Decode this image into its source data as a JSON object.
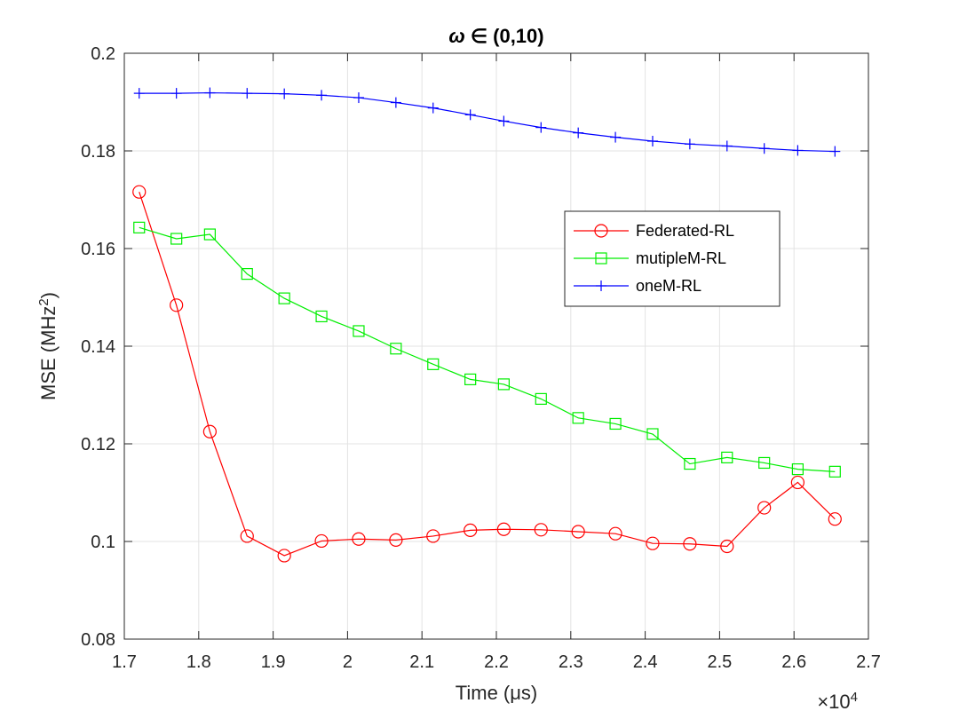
{
  "chart_data": {
    "type": "line",
    "title_symbol": "ω",
    "title_rest": "∈ (0,10)",
    "xlabel": "Time (μs)",
    "ylabel": "MSE (MHz",
    "ylabel_sup": "2",
    "ylabel_end": ")",
    "x_exponent_base": "×10",
    "x_exponent_power": "4",
    "xlim": [
      1.7,
      2.7
    ],
    "ylim": [
      0.08,
      0.2
    ],
    "x_ticks": [
      1.7,
      1.8,
      1.9,
      2.0,
      2.1,
      2.2,
      2.3,
      2.4,
      2.5,
      2.6,
      2.7
    ],
    "x_tick_labels": [
      "1.7",
      "1.8",
      "1.9",
      "2",
      "2.1",
      "2.2",
      "2.3",
      "2.4",
      "2.5",
      "2.6",
      "2.7"
    ],
    "y_ticks": [
      0.08,
      0.1,
      0.12,
      0.14,
      0.16,
      0.18,
      0.2
    ],
    "y_tick_labels": [
      "0.08",
      "0.1",
      "0.12",
      "0.14",
      "0.16",
      "0.18",
      "0.2"
    ],
    "grid": true,
    "legend_position": "upper-right-inside",
    "series": [
      {
        "name": "Federated-RL",
        "color": "#ff0000",
        "marker": "circle",
        "x": [
          1.72,
          1.77,
          1.815,
          1.865,
          1.915,
          1.965,
          2.015,
          2.065,
          2.115,
          2.165,
          2.21,
          2.26,
          2.31,
          2.36,
          2.41,
          2.46,
          2.51,
          2.56,
          2.605,
          2.655
        ],
        "y": [
          0.1716,
          0.1484,
          0.1225,
          0.1011,
          0.0971,
          0.1001,
          0.1005,
          0.1003,
          0.1011,
          0.1023,
          0.1025,
          0.1024,
          0.102,
          0.1016,
          0.0996,
          0.0995,
          0.099,
          0.1069,
          0.1121,
          0.1046
        ]
      },
      {
        "name": "mutipleM-RL",
        "color": "#00ee00",
        "marker": "square",
        "x": [
          1.72,
          1.77,
          1.815,
          1.865,
          1.915,
          1.965,
          2.015,
          2.065,
          2.115,
          2.165,
          2.21,
          2.26,
          2.31,
          2.36,
          2.41,
          2.46,
          2.51,
          2.56,
          2.605,
          2.655
        ],
        "y": [
          0.1643,
          0.162,
          0.1629,
          0.1548,
          0.1498,
          0.1461,
          0.1431,
          0.1395,
          0.1363,
          0.1332,
          0.1322,
          0.1292,
          0.1253,
          0.1241,
          0.122,
          0.1159,
          0.1172,
          0.1161,
          0.1148,
          0.1143
        ]
      },
      {
        "name": "oneM-RL",
        "color": "#0000ff",
        "marker": "plus",
        "x": [
          1.72,
          1.77,
          1.815,
          1.865,
          1.915,
          1.965,
          2.015,
          2.065,
          2.115,
          2.165,
          2.21,
          2.26,
          2.31,
          2.36,
          2.41,
          2.46,
          2.51,
          2.56,
          2.605,
          2.655
        ],
        "y": [
          0.1918,
          0.1918,
          0.1919,
          0.1918,
          0.1917,
          0.1914,
          0.1909,
          0.1899,
          0.1888,
          0.1874,
          0.1861,
          0.1848,
          0.1837,
          0.1828,
          0.182,
          0.1814,
          0.181,
          0.1805,
          0.1801,
          0.1799
        ]
      }
    ]
  }
}
